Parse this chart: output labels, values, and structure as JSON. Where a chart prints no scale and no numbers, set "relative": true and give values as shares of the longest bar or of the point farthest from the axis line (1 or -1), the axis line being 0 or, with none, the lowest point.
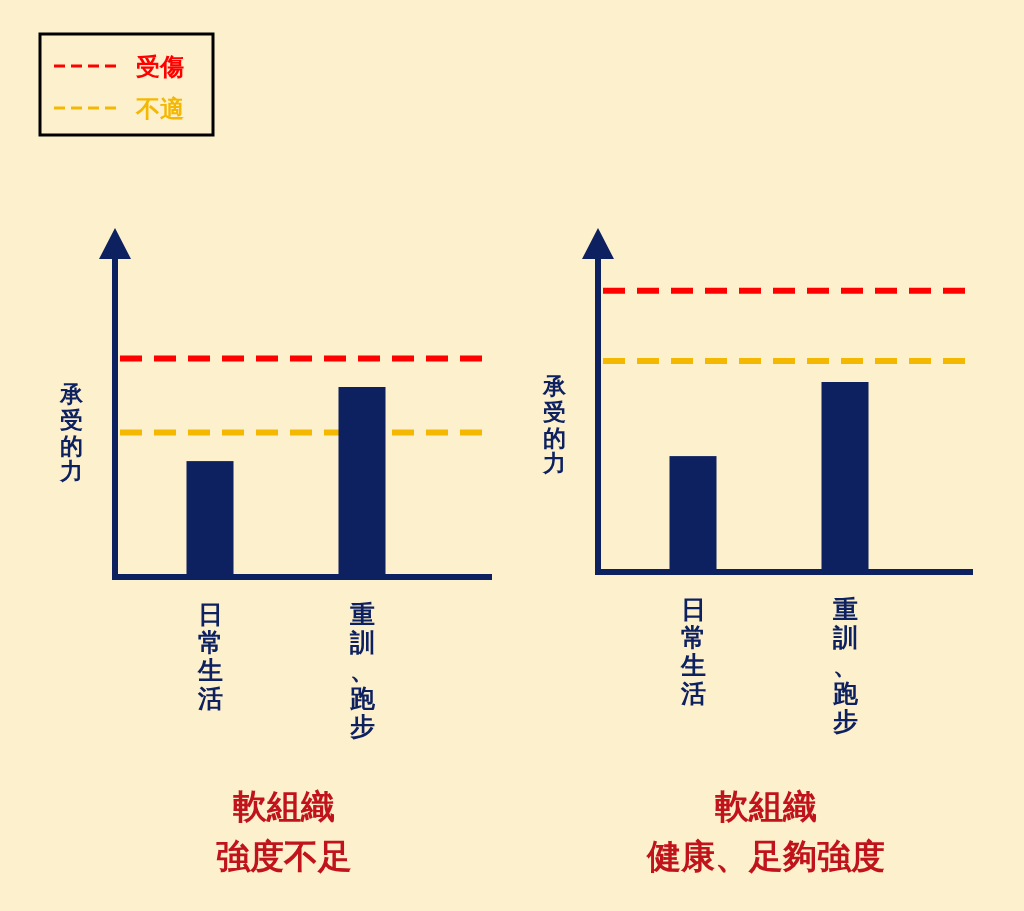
{
  "chart_data": [
    {
      "type": "bar",
      "relative": true,
      "title": "軟組織",
      "subtitle": "強度不足",
      "ylabel": "承受的力",
      "categories": [
        "日常生活",
        "重訓、跑步"
      ],
      "values": [
        0.61,
        1
      ],
      "color": "#0d2161",
      "legend": "top left",
      "ref_lines": [
        {
          "axis": "y",
          "value": 1.15,
          "label": "受傷",
          "color": "#ff0000",
          "line_style": "dashed"
        },
        {
          "axis": "y",
          "value": 0.76,
          "label": "不適",
          "color": "#f5b800",
          "line_style": "dashed"
        }
      ]
    },
    {
      "type": "bar",
      "relative": true,
      "title": "軟組織",
      "subtitle": "健康、足夠強度",
      "ylabel": "承受的力",
      "categories": [
        "日常生活",
        "重訓、跑步"
      ],
      "values": [
        0.61,
        1
      ],
      "color": "#0d2161",
      "ref_lines": [
        {
          "axis": "y",
          "value": 1.48,
          "color": "#ff0000",
          "line_style": "dashed"
        },
        {
          "axis": "y",
          "value": 1.11,
          "color": "#f5b800",
          "line_style": "dashed"
        }
      ]
    }
  ]
}
